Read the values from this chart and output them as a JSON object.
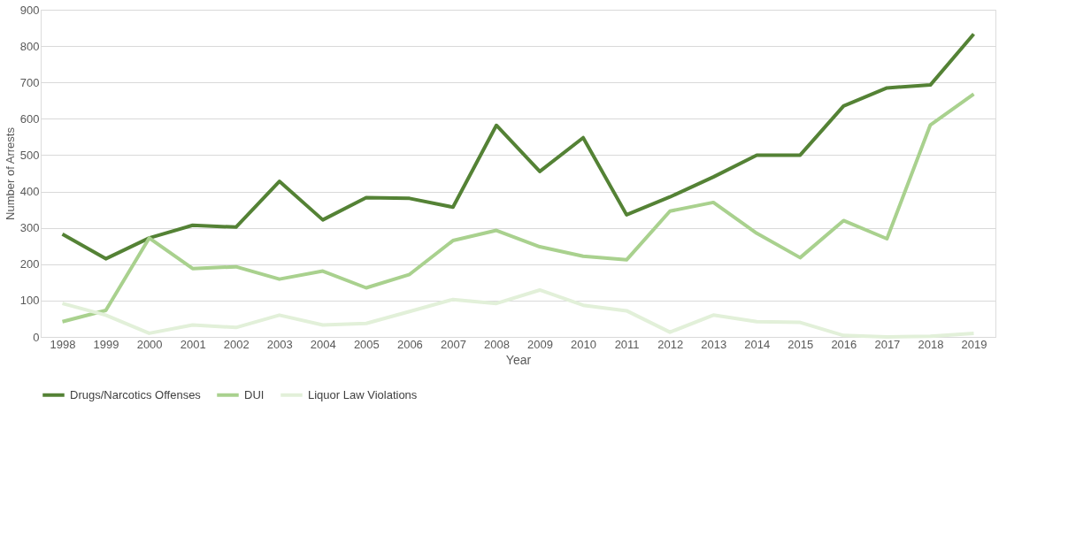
{
  "chart_data": {
    "type": "line",
    "xlabel": "Year",
    "ylabel": "Number of Arrests",
    "categories": [
      "1998",
      "1999",
      "2000",
      "2001",
      "2002",
      "2003",
      "2004",
      "2005",
      "2006",
      "2007",
      "2008",
      "2009",
      "2010",
      "2011",
      "2012",
      "2013",
      "2014",
      "2015",
      "2016",
      "2017",
      "2018",
      "2019"
    ],
    "series": [
      {
        "name": "Drugs/Narcotics Offenses",
        "color": "#548235",
        "values": [
          283,
          215,
          272,
          307,
          302,
          428,
          322,
          383,
          381,
          357,
          582,
          455,
          548,
          336,
          385,
          440,
          500,
          500,
          635,
          685,
          693,
          833
        ]
      },
      {
        "name": "DUI",
        "color": "#a9d18e",
        "values": [
          42,
          73,
          272,
          188,
          193,
          159,
          181,
          135,
          172,
          265,
          293,
          248,
          222,
          212,
          346,
          370,
          285,
          218,
          320,
          270,
          583,
          668
        ]
      },
      {
        "name": "Liquor Law Violations",
        "color": "#e2f0d9",
        "values": [
          92,
          60,
          10,
          33,
          26,
          60,
          33,
          37,
          70,
          103,
          92,
          129,
          87,
          72,
          13,
          60,
          42,
          40,
          4,
          0,
          2,
          10
        ]
      }
    ],
    "ylim": [
      0,
      900
    ],
    "yticks": [
      0,
      100,
      200,
      300,
      400,
      500,
      600,
      700,
      800,
      900
    ],
    "grid": "y",
    "legend": "bottom",
    "marker": "none",
    "line_style": "solid"
  }
}
